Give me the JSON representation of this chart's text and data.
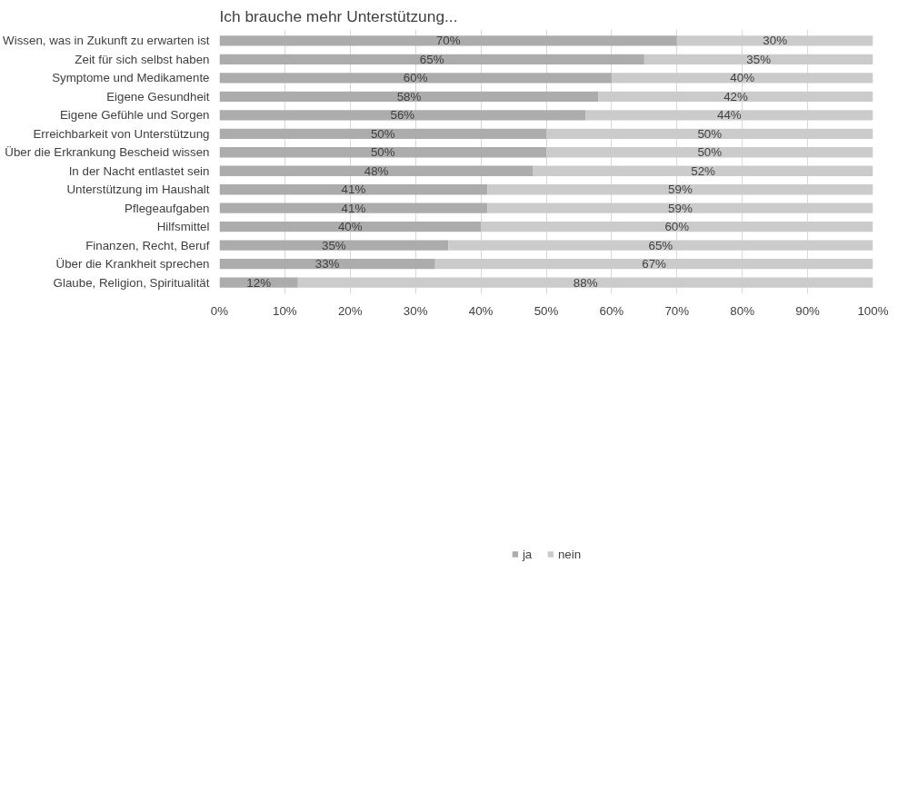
{
  "chart_data": {
    "type": "bar",
    "orientation": "horizontal",
    "stacked": true,
    "title": "Ich brauche mehr Unterstützung...",
    "categories": [
      "Wissen, was in Zukunft zu erwarten ist",
      "Zeit für sich selbst haben",
      "Symptome und Medikamente",
      "Eigene Gesundheit",
      "Eigene Gefühle und Sorgen",
      "Erreichbarkeit von Unterstützung",
      "Über die Erkrankung Bescheid wissen",
      "In der Nacht entlastet sein",
      "Unterstützung im Haushalt",
      "Pflegeaufgaben",
      "Hilfsmittel",
      "Finanzen, Recht, Beruf",
      "Über die Krankheit sprechen",
      "Glaube, Religion, Spiritualität"
    ],
    "series": [
      {
        "name": "ja",
        "color": "#acacac",
        "values": [
          70,
          65,
          60,
          58,
          56,
          50,
          50,
          48,
          41,
          41,
          40,
          35,
          33,
          12
        ],
        "value_labels": [
          "70%",
          "65%",
          "60%",
          "58%",
          "56%",
          "50%",
          "50%",
          "48%",
          "41%",
          "41%",
          "40%",
          "35%",
          "33%",
          "12%"
        ]
      },
      {
        "name": "nein",
        "color": "#cbcbcb",
        "values": [
          30,
          35,
          40,
          42,
          44,
          50,
          50,
          52,
          59,
          59,
          60,
          65,
          67,
          88
        ],
        "value_labels": [
          "30%",
          "35%",
          "40%",
          "42%",
          "44%",
          "50%",
          "50%",
          "52%",
          "59%",
          "59%",
          "60%",
          "65%",
          "67%",
          "88%"
        ]
      }
    ],
    "xlim": [
      0,
      100
    ],
    "xticks": [
      {
        "value": 0,
        "label": "0%"
      },
      {
        "value": 10,
        "label": "10%"
      },
      {
        "value": 20,
        "label": "20%"
      },
      {
        "value": 30,
        "label": "30%"
      },
      {
        "value": 40,
        "label": "40%"
      },
      {
        "value": 50,
        "label": "50%"
      },
      {
        "value": 60,
        "label": "60%"
      },
      {
        "value": 70,
        "label": "70%"
      },
      {
        "value": 80,
        "label": "80%"
      },
      {
        "value": 90,
        "label": "90%"
      },
      {
        "value": 100,
        "label": "100%"
      }
    ],
    "grid": "x",
    "legend": "bottom"
  }
}
